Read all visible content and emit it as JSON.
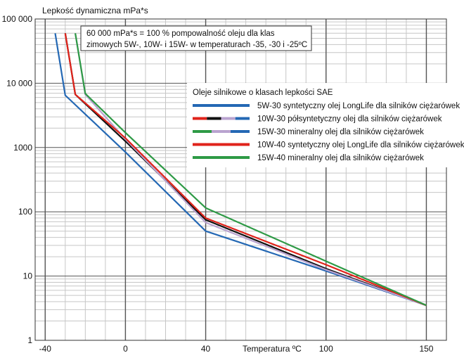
{
  "colors": {
    "blue": "#2468b4",
    "red": "#e0231b",
    "green": "#2e9a46",
    "black": "#111111",
    "lilac": "#b9a3cf",
    "grid_major": "#555555",
    "grid_minor": "#c6c6c6"
  },
  "chart_data": {
    "type": "line",
    "y_scale": "log",
    "grid": true,
    "legend_position": "top-right",
    "title": "",
    "ylabel": "Lepkość dynamiczna mPa*s",
    "xlabel": "Temperatura ºC",
    "xlim": [
      -45,
      160
    ],
    "ylim": [
      1,
      100000
    ],
    "x_ticks": [
      -40,
      0,
      40,
      100,
      150
    ],
    "y_ticks": [
      {
        "value": 1,
        "label": "1"
      },
      {
        "value": 10,
        "label": "10"
      },
      {
        "value": 100,
        "label": "100"
      },
      {
        "value": 1000,
        "label": "1000"
      },
      {
        "value": 10000,
        "label": "10 000"
      },
      {
        "value": 100000,
        "label": "100 000"
      }
    ],
    "annotation": {
      "lines": [
        "60 000 mPa*s = 100 % pompowalność  oleju dla klas",
        "zimowych 5W-, 10W- i 15W- w temperaturach -35, -30 i -25ºC"
      ]
    },
    "legend_title": "Oleje silnikowe o klasach lepkości SAE",
    "series": [
      {
        "name": "5W-30  syntetyczny olej LongLife dla silników ciężarówek",
        "color": "#2468b4",
        "swatch": [
          "#2468b4"
        ],
        "x": [
          -35,
          -30,
          0,
          40,
          100,
          150
        ],
        "y": [
          60000,
          6500,
          850,
          50,
          12,
          3.5
        ]
      },
      {
        "name": "10W-30  półsyntetyczny olej dla silników ciężarówek",
        "color": "#111111",
        "swatch": [
          "#e0231b",
          "#111111",
          "#b9a3cf",
          "#2468b4"
        ],
        "x": [
          -30,
          -25,
          0,
          40,
          100,
          150
        ],
        "y": [
          60000,
          6700,
          1250,
          75,
          13,
          3.5
        ]
      },
      {
        "name": "15W-30  mineralny olej dla silników ciężarówek",
        "color": "#b9a3cf",
        "swatch": [
          "#2e9a46",
          "#b9a3cf",
          "#2468b4"
        ],
        "x": [
          -25,
          -20,
          0,
          40,
          100,
          150
        ],
        "y": [
          60000,
          6700,
          1350,
          68,
          12.5,
          3.5
        ]
      },
      {
        "name": "10W-40 syntetyczny olej LongLife dla silników ciężarówek",
        "color": "#e0231b",
        "swatch": [
          "#e0231b"
        ],
        "x": [
          -30,
          -25,
          0,
          40,
          100,
          150
        ],
        "y": [
          60000,
          6700,
          1400,
          80,
          15,
          3.5
        ]
      },
      {
        "name": "15W-40 mineralny olej dla silników ciężarówek",
        "color": "#2e9a46",
        "swatch": [
          "#2e9a46"
        ],
        "x": [
          -25,
          -20,
          0,
          40,
          100,
          150
        ],
        "y": [
          60000,
          6900,
          1700,
          115,
          17,
          3.5
        ]
      }
    ]
  }
}
